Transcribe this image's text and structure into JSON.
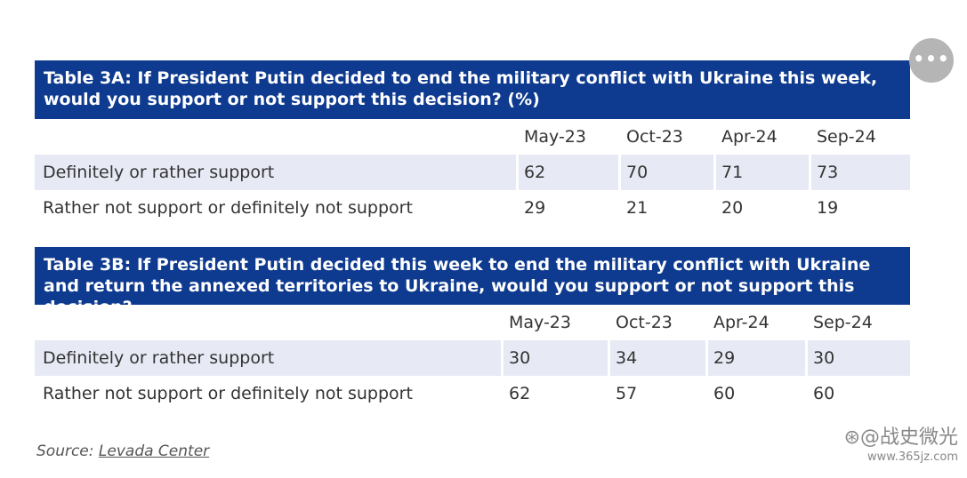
{
  "tables": [
    {
      "title": "Table 3A: If President Putin decided to end the military conflict with Ukraine this week, would you support or not support this decision? (%)",
      "columns": [
        "May-23",
        "Oct-23",
        "Apr-24",
        "Sep-24"
      ],
      "rows": [
        {
          "label": "Definitely or rather support",
          "values": [
            "62",
            "70",
            "71",
            "73"
          ]
        },
        {
          "label": "Rather not support or definitely not support",
          "values": [
            "29",
            "21",
            "20",
            "19"
          ]
        }
      ]
    },
    {
      "title": "Table 3B: If President Putin decided this week to end the military conflict with Ukraine and return the annexed territories to Ukraine, would you support or not support this decision?",
      "columns": [
        "May-23",
        "Oct-23",
        "Apr-24",
        "Sep-24"
      ],
      "rows": [
        {
          "label": "Definitely or rather support",
          "values": [
            "30",
            "34",
            "29",
            "30"
          ]
        },
        {
          "label": "Rather not support or definitely not support",
          "values": [
            "62",
            "57",
            "60",
            "60"
          ]
        }
      ]
    }
  ],
  "source": {
    "prefix": "Source:",
    "link_text": "Levada Center"
  },
  "more_button": {
    "label": "•••",
    "icon": "more-dots-icon"
  },
  "watermark": {
    "top": "⊛@战史微光",
    "url": "www.365jz.com"
  },
  "colors": {
    "header_bg": "#0e3a8f",
    "shaded_row": "#e7eaf5"
  }
}
